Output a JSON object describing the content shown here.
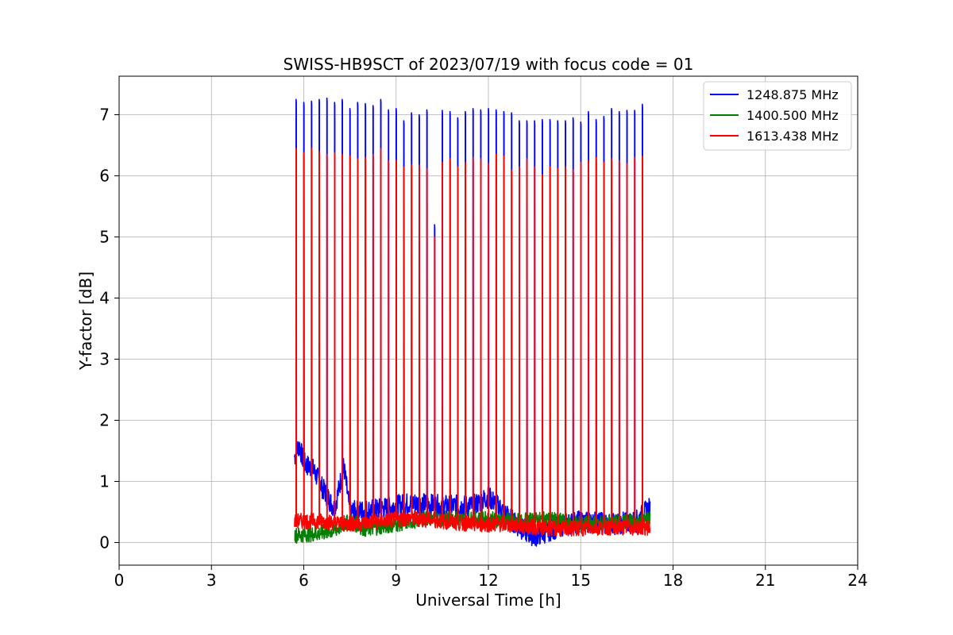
{
  "chart_data": {
    "type": "line",
    "title": "SWISS-HB9SCT of 2023/07/19 with focus code = 01",
    "xlabel": "Universal Time [h]",
    "ylabel": "Y-factor [dB]",
    "xlim": [
      0,
      24
    ],
    "ylim": [
      -0.37,
      7.63
    ],
    "xticks": [
      0,
      3,
      6,
      9,
      12,
      15,
      18,
      21,
      24
    ],
    "xtick_labels": [
      "0",
      "3",
      "6",
      "9",
      "12",
      "15",
      "18",
      "21",
      "24"
    ],
    "yticks": [
      0,
      1,
      2,
      3,
      4,
      5,
      6,
      7
    ],
    "ytick_labels": [
      "0",
      "1",
      "2",
      "3",
      "4",
      "5",
      "6",
      "7"
    ],
    "grid": true,
    "legend_position": "top-right",
    "data_range_hours": [
      5.7,
      17.25
    ],
    "series": [
      {
        "name": "1248.875 MHz",
        "color": "#0000ff",
        "calibration_spikes": [
          {
            "t": 5.75,
            "peak": 7.25
          },
          {
            "t": 6.0,
            "peak": 7.2
          },
          {
            "t": 6.25,
            "peak": 7.22
          },
          {
            "t": 6.5,
            "peak": 7.25
          },
          {
            "t": 6.75,
            "peak": 7.27
          },
          {
            "t": 7.0,
            "peak": 7.2
          },
          {
            "t": 7.25,
            "peak": 7.25
          },
          {
            "t": 7.5,
            "peak": 7.1
          },
          {
            "t": 7.75,
            "peak": 7.2
          },
          {
            "t": 8.0,
            "peak": 7.18
          },
          {
            "t": 8.25,
            "peak": 7.15
          },
          {
            "t": 8.5,
            "peak": 7.25
          },
          {
            "t": 8.75,
            "peak": 7.08
          },
          {
            "t": 9.0,
            "peak": 7.1
          },
          {
            "t": 9.25,
            "peak": 6.9
          },
          {
            "t": 9.5,
            "peak": 7.03
          },
          {
            "t": 9.75,
            "peak": 7.0
          },
          {
            "t": 10.0,
            "peak": 7.08
          },
          {
            "t": 10.25,
            "peak": 5.2
          },
          {
            "t": 10.5,
            "peak": 7.07
          },
          {
            "t": 10.75,
            "peak": 7.05
          },
          {
            "t": 11.0,
            "peak": 6.95
          },
          {
            "t": 11.25,
            "peak": 7.05
          },
          {
            "t": 11.5,
            "peak": 7.1
          },
          {
            "t": 11.75,
            "peak": 7.08
          },
          {
            "t": 12.0,
            "peak": 7.1
          },
          {
            "t": 12.25,
            "peak": 7.08
          },
          {
            "t": 12.5,
            "peak": 7.05
          },
          {
            "t": 12.75,
            "peak": 7.03
          },
          {
            "t": 13.0,
            "peak": 6.9
          },
          {
            "t": 13.25,
            "peak": 6.9
          },
          {
            "t": 13.5,
            "peak": 6.9
          },
          {
            "t": 13.75,
            "peak": 6.92
          },
          {
            "t": 14.0,
            "peak": 6.92
          },
          {
            "t": 14.25,
            "peak": 6.9
          },
          {
            "t": 14.5,
            "peak": 6.9
          },
          {
            "t": 14.75,
            "peak": 6.95
          },
          {
            "t": 15.0,
            "peak": 6.88
          },
          {
            "t": 15.25,
            "peak": 7.05
          },
          {
            "t": 15.5,
            "peak": 6.92
          },
          {
            "t": 15.75,
            "peak": 6.97
          },
          {
            "t": 16.0,
            "peak": 7.1
          },
          {
            "t": 16.25,
            "peak": 7.05
          },
          {
            "t": 16.5,
            "peak": 7.07
          },
          {
            "t": 16.75,
            "peak": 7.07
          },
          {
            "t": 17.0,
            "peak": 7.17
          }
        ],
        "baseline": [
          {
            "t": 5.7,
            "y": 1.4
          },
          {
            "t": 5.85,
            "y": 1.6
          },
          {
            "t": 6.0,
            "y": 1.3
          },
          {
            "t": 6.3,
            "y": 1.2
          },
          {
            "t": 6.6,
            "y": 0.9
          },
          {
            "t": 7.0,
            "y": 0.55
          },
          {
            "t": 7.3,
            "y": 1.25
          },
          {
            "t": 7.5,
            "y": 0.5
          },
          {
            "t": 8.5,
            "y": 0.55
          },
          {
            "t": 9.5,
            "y": 0.65
          },
          {
            "t": 10.5,
            "y": 0.6
          },
          {
            "t": 11.5,
            "y": 0.6
          },
          {
            "t": 12.0,
            "y": 0.75
          },
          {
            "t": 12.5,
            "y": 0.5
          },
          {
            "t": 13.0,
            "y": 0.25
          },
          {
            "t": 13.5,
            "y": 0.1
          },
          {
            "t": 14.0,
            "y": 0.2
          },
          {
            "t": 14.5,
            "y": 0.3
          },
          {
            "t": 15.0,
            "y": 0.35
          },
          {
            "t": 16.0,
            "y": 0.3
          },
          {
            "t": 16.8,
            "y": 0.35
          },
          {
            "t": 17.2,
            "y": 0.55
          }
        ]
      },
      {
        "name": "1400.500 MHz",
        "color": "#008000",
        "baseline": [
          {
            "t": 5.7,
            "y": 0.12
          },
          {
            "t": 6.5,
            "y": 0.15
          },
          {
            "t": 7.0,
            "y": 0.2
          },
          {
            "t": 7.5,
            "y": 0.35
          },
          {
            "t": 8.0,
            "y": 0.22
          },
          {
            "t": 9.0,
            "y": 0.3
          },
          {
            "t": 10.0,
            "y": 0.4
          },
          {
            "t": 11.0,
            "y": 0.38
          },
          {
            "t": 12.0,
            "y": 0.38
          },
          {
            "t": 13.0,
            "y": 0.35
          },
          {
            "t": 14.0,
            "y": 0.38
          },
          {
            "t": 15.0,
            "y": 0.3
          },
          {
            "t": 16.0,
            "y": 0.33
          },
          {
            "t": 17.0,
            "y": 0.35
          },
          {
            "t": 17.2,
            "y": 0.4
          }
        ]
      },
      {
        "name": "1613.438 MHz",
        "color": "#ff0000",
        "calibration_spikes": [
          {
            "t": 5.75,
            "peak": 6.45
          },
          {
            "t": 6.0,
            "peak": 6.38
          },
          {
            "t": 6.25,
            "peak": 6.45
          },
          {
            "t": 6.5,
            "peak": 6.4
          },
          {
            "t": 6.75,
            "peak": 6.35
          },
          {
            "t": 7.0,
            "peak": 6.38
          },
          {
            "t": 7.25,
            "peak": 6.35
          },
          {
            "t": 7.5,
            "peak": 6.32
          },
          {
            "t": 7.75,
            "peak": 6.28
          },
          {
            "t": 8.0,
            "peak": 6.3
          },
          {
            "t": 8.25,
            "peak": 6.35
          },
          {
            "t": 8.5,
            "peak": 6.45
          },
          {
            "t": 8.75,
            "peak": 6.25
          },
          {
            "t": 9.0,
            "peak": 6.25
          },
          {
            "t": 9.25,
            "peak": 6.15
          },
          {
            "t": 9.5,
            "peak": 6.18
          },
          {
            "t": 9.75,
            "peak": 6.18
          },
          {
            "t": 10.0,
            "peak": 6.12
          },
          {
            "t": 10.25,
            "peak": 5.0
          },
          {
            "t": 10.5,
            "peak": 6.22
          },
          {
            "t": 10.75,
            "peak": 6.28
          },
          {
            "t": 11.0,
            "peak": 6.15
          },
          {
            "t": 11.25,
            "peak": 6.22
          },
          {
            "t": 11.5,
            "peak": 6.3
          },
          {
            "t": 11.75,
            "peak": 6.28
          },
          {
            "t": 12.0,
            "peak": 6.2
          },
          {
            "t": 12.25,
            "peak": 6.35
          },
          {
            "t": 12.5,
            "peak": 6.32
          },
          {
            "t": 12.75,
            "peak": 6.1
          },
          {
            "t": 13.0,
            "peak": 6.15
          },
          {
            "t": 13.25,
            "peak": 6.28
          },
          {
            "t": 13.5,
            "peak": 6.15
          },
          {
            "t": 13.75,
            "peak": 6.02
          },
          {
            "t": 14.0,
            "peak": 6.15
          },
          {
            "t": 14.25,
            "peak": 6.12
          },
          {
            "t": 14.5,
            "peak": 6.15
          },
          {
            "t": 14.75,
            "peak": 6.1
          },
          {
            "t": 15.0,
            "peak": 6.22
          },
          {
            "t": 15.25,
            "peak": 6.25
          },
          {
            "t": 15.5,
            "peak": 6.3
          },
          {
            "t": 15.75,
            "peak": 6.22
          },
          {
            "t": 16.0,
            "peak": 6.28
          },
          {
            "t": 16.25,
            "peak": 6.25
          },
          {
            "t": 16.5,
            "peak": 6.2
          },
          {
            "t": 16.75,
            "peak": 6.3
          },
          {
            "t": 17.0,
            "peak": 6.32
          }
        ],
        "baseline": [
          {
            "t": 5.7,
            "y": 0.35
          },
          {
            "t": 6.5,
            "y": 0.35
          },
          {
            "t": 7.5,
            "y": 0.3
          },
          {
            "t": 8.5,
            "y": 0.35
          },
          {
            "t": 9.5,
            "y": 0.4
          },
          {
            "t": 10.5,
            "y": 0.35
          },
          {
            "t": 11.5,
            "y": 0.3
          },
          {
            "t": 12.5,
            "y": 0.3
          },
          {
            "t": 13.5,
            "y": 0.25
          },
          {
            "t": 14.5,
            "y": 0.22
          },
          {
            "t": 15.5,
            "y": 0.25
          },
          {
            "t": 16.5,
            "y": 0.25
          },
          {
            "t": 17.2,
            "y": 0.25
          }
        ]
      }
    ]
  }
}
